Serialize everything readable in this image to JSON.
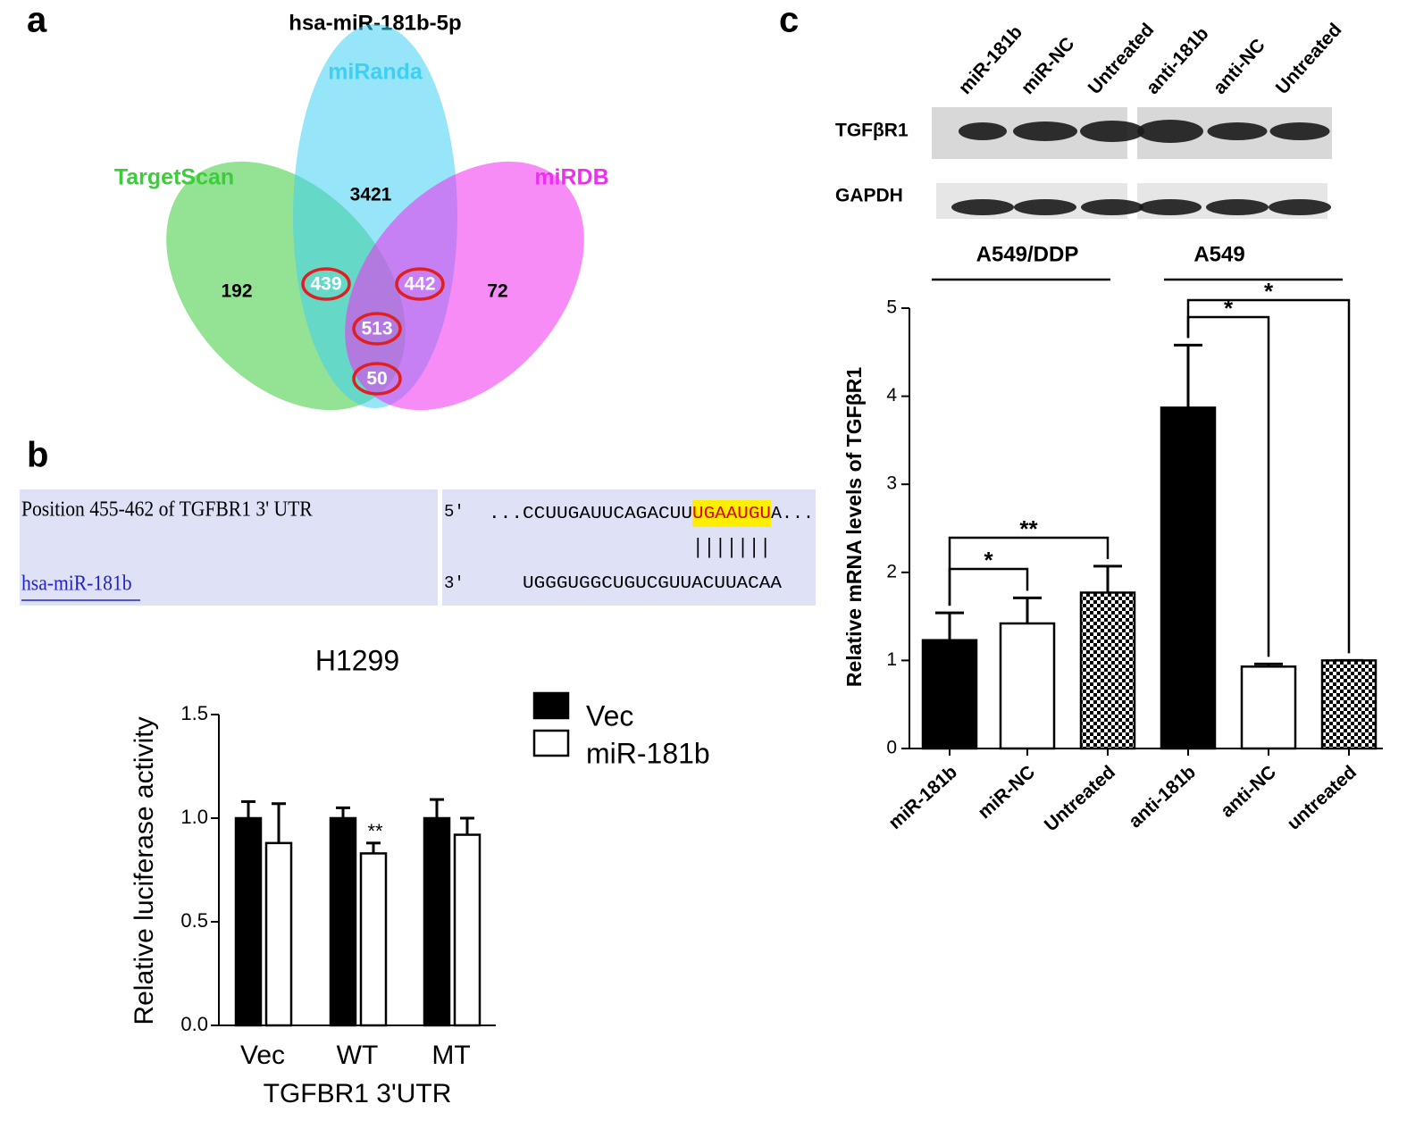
{
  "panel_labels": [
    "a",
    "b",
    "c"
  ],
  "alignment": {
    "utr_label": "Position 455-462 of TGFBR1 3' UTR",
    "utr_end": "5'",
    "utr_seq_left": "...CCUUGAUUCAGACUU",
    "utr_seed": "UGAAUGU",
    "utr_seq_right": "A...",
    "pairing": "|||||||",
    "mirna_label": "hsa-miR-181b",
    "mirna_end": "3'",
    "mirna_seq": "UGGGUGGCUGUCGUUACUUACAA"
  },
  "blot": {
    "lanes": [
      "miR-181b",
      "miR-NC",
      "Untreated",
      "anti-181b",
      "anti-NC",
      "Untreated"
    ],
    "proteins": [
      "TGFβR1",
      "GAPDH"
    ]
  },
  "chart_data": [
    {
      "type": "venn",
      "title": "hsa-miR-181b-5p",
      "sets": [
        {
          "name": "TargetScan",
          "color": "#3ccc3c"
        },
        {
          "name": "miRanda",
          "color": "#3fcff2"
        },
        {
          "name": "miRDB",
          "color": "#f02ef0"
        }
      ],
      "values": [
        3421,
        192,
        72,
        439,
        442,
        513,
        50
      ]
    },
    {
      "type": "grouped_bar",
      "title": "H1299",
      "x_label": "TGFBR1 3'UTR",
      "y_label": "Relative luciferase activity",
      "categories": [
        "Vec",
        "WT",
        "MT"
      ],
      "series": [
        {
          "name": "Vec",
          "color": "#000000",
          "values": [
            1.0,
            1.0,
            1.0
          ],
          "errors": [
            0.08,
            0.05,
            0.09
          ]
        },
        {
          "name": "miR-181b",
          "color": "#ffffff",
          "values": [
            0.88,
            0.83,
            0.92
          ],
          "errors": [
            0.19,
            0.05,
            0.08
          ]
        }
      ],
      "annotations": [
        "**"
      ],
      "ylim": [
        0,
        1.5
      ],
      "yticks": [
        {
          "value": 0,
          "label": "0.0"
        },
        0.5,
        {
          "value": 1,
          "label": "1.0"
        },
        1.5
      ]
    },
    {
      "type": "bar",
      "y_label": "Relative mRNA levels of TGFβR1",
      "categories": [
        "miR-181b",
        "miR-NC",
        "Untreated",
        "anti-181b",
        "anti-NC",
        "untreated"
      ],
      "values": [
        1.23,
        1.42,
        1.77,
        3.87,
        0.93,
        1.0
      ],
      "errors": [
        0.31,
        0.29,
        0.3,
        0.71,
        0.03,
        0.0
      ],
      "fills": [
        "#000000",
        "#ffffff",
        "checker",
        "#000000",
        "#ffffff",
        "checker"
      ],
      "groups": [
        "A549/DDP",
        "A549"
      ],
      "annotations": [
        "**",
        "*",
        "*",
        "*"
      ],
      "ylim": [
        0,
        5
      ],
      "yticks": [
        0,
        1,
        2,
        3,
        4,
        5
      ]
    }
  ]
}
